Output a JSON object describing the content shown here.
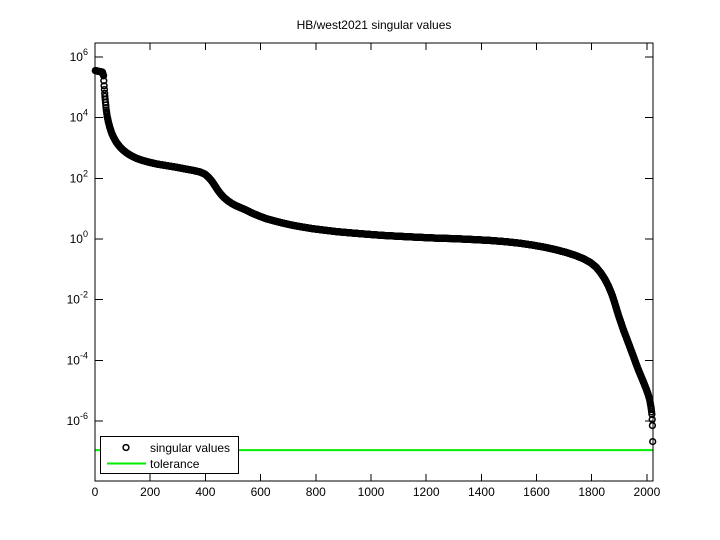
{
  "title": "HB/west2021 singular values",
  "colors": {
    "background": "#ffffff",
    "axis": "#000000",
    "data_marker": "#000000",
    "tolerance": "#00ee00"
  },
  "legend": {
    "position": "southwest",
    "items": [
      {
        "label": "singular values",
        "sample": "circle-marker"
      },
      {
        "label": "tolerance",
        "sample": "green-line"
      }
    ]
  },
  "chart_data": {
    "type": "scatter",
    "title": "HB/west2021 singular values",
    "xlabel": "",
    "ylabel": "",
    "y_scale": "log10",
    "grid": false,
    "legend_position": "southwest",
    "xlim": [
      0,
      2022
    ],
    "ylim_log10": [
      -8,
      6.5
    ],
    "x_ticks": [
      0,
      200,
      400,
      600,
      800,
      1000,
      1200,
      1400,
      1600,
      1800,
      2000
    ],
    "y_tick_exponents": [
      6,
      4,
      2,
      0,
      -2,
      -4,
      -6
    ],
    "n_points": 2021,
    "tolerance": 1.1e-07,
    "series": [
      {
        "name": "singular values",
        "marker": "hollow-circle",
        "color": "#000000",
        "log10_breakpoints": [
          [
            1,
            5.55
          ],
          [
            27,
            5.5
          ],
          [
            31,
            5.38
          ],
          [
            33,
            5.05
          ],
          [
            35,
            4.8
          ],
          [
            38,
            4.5
          ],
          [
            41,
            4.25
          ],
          [
            44,
            4.05
          ],
          [
            48,
            3.88
          ],
          [
            53,
            3.7
          ],
          [
            60,
            3.5
          ],
          [
            68,
            3.34
          ],
          [
            78,
            3.18
          ],
          [
            90,
            3.04
          ],
          [
            102,
            2.93
          ],
          [
            116,
            2.83
          ],
          [
            132,
            2.74
          ],
          [
            150,
            2.66
          ],
          [
            172,
            2.59
          ],
          [
            196,
            2.53
          ],
          [
            225,
            2.47
          ],
          [
            258,
            2.42
          ],
          [
            292,
            2.37
          ],
          [
            326,
            2.31
          ],
          [
            356,
            2.26
          ],
          [
            380,
            2.21
          ],
          [
            398,
            2.14
          ],
          [
            412,
            2.03
          ],
          [
            424,
            1.9
          ],
          [
            435,
            1.75
          ],
          [
            445,
            1.61
          ],
          [
            455,
            1.49
          ],
          [
            467,
            1.37
          ],
          [
            480,
            1.27
          ],
          [
            494,
            1.18
          ],
          [
            510,
            1.1
          ],
          [
            528,
            1.03
          ],
          [
            548,
            0.95
          ],
          [
            570,
            0.85
          ],
          [
            594,
            0.76
          ],
          [
            620,
            0.67
          ],
          [
            648,
            0.6
          ],
          [
            678,
            0.53
          ],
          [
            712,
            0.46
          ],
          [
            748,
            0.4
          ],
          [
            788,
            0.34
          ],
          [
            832,
            0.29
          ],
          [
            878,
            0.24
          ],
          [
            928,
            0.2
          ],
          [
            982,
            0.16
          ],
          [
            1040,
            0.12
          ],
          [
            1100,
            0.09
          ],
          [
            1165,
            0.06
          ],
          [
            1235,
            0.03
          ],
          [
            1305,
            0.01
          ],
          [
            1375,
            -0.02
          ],
          [
            1435,
            -0.05
          ],
          [
            1490,
            -0.09
          ],
          [
            1540,
            -0.14
          ],
          [
            1585,
            -0.2
          ],
          [
            1628,
            -0.27
          ],
          [
            1668,
            -0.35
          ],
          [
            1706,
            -0.44
          ],
          [
            1740,
            -0.54
          ],
          [
            1770,
            -0.65
          ],
          [
            1796,
            -0.78
          ],
          [
            1816,
            -0.93
          ],
          [
            1833,
            -1.12
          ],
          [
            1848,
            -1.33
          ],
          [
            1861,
            -1.56
          ],
          [
            1872,
            -1.8
          ],
          [
            1881,
            -2.04
          ],
          [
            1889,
            -2.28
          ],
          [
            1897,
            -2.52
          ],
          [
            1906,
            -2.76
          ],
          [
            1915,
            -3.0
          ],
          [
            1925,
            -3.24
          ],
          [
            1935,
            -3.48
          ],
          [
            1944,
            -3.7
          ],
          [
            1953,
            -3.92
          ],
          [
            1961,
            -4.12
          ],
          [
            1969,
            -4.31
          ],
          [
            1977,
            -4.49
          ],
          [
            1985,
            -4.66
          ],
          [
            1992,
            -4.82
          ],
          [
            1999,
            -4.98
          ],
          [
            2005,
            -5.14
          ],
          [
            2010,
            -5.3
          ],
          [
            2013,
            -5.45
          ],
          [
            2016,
            -5.62
          ],
          [
            2018,
            -5.78
          ],
          [
            2019,
            -5.95
          ],
          [
            2020,
            -6.15
          ],
          [
            2021,
            -6.68
          ]
        ]
      },
      {
        "name": "tolerance",
        "type": "hline",
        "color": "#00ee00",
        "value": 1.1e-07
      }
    ]
  }
}
